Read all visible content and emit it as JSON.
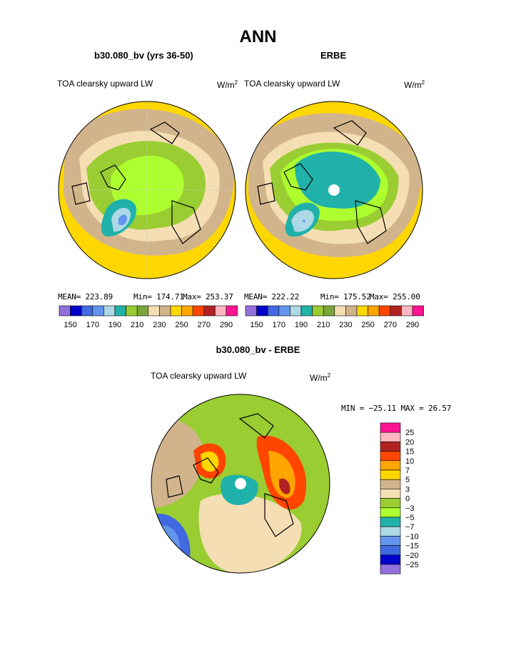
{
  "page_title": "ANN",
  "colors": {
    "abs_scale": [
      "#9370db",
      "#0000cd",
      "#4169e1",
      "#6495ed",
      "#add8e6",
      "#20b2aa",
      "#9acd32",
      "#7ba63a",
      "#f5deb3",
      "#d2b48c",
      "#ffd700",
      "#ffa500",
      "#ff4500",
      "#b22222",
      "#ffb6c1",
      "#ff1493"
    ],
    "diff_scale": [
      "#9370db",
      "#0000cd",
      "#4169e1",
      "#6495ed",
      "#add8e6",
      "#20b2aa",
      "#adff2f",
      "#9acd32",
      "#f5deb3",
      "#d2b48c",
      "#ffd700",
      "#ffa500",
      "#ff4500",
      "#b22222",
      "#ffb6c1",
      "#ff1493"
    ]
  },
  "chart_data": [
    {
      "type": "heatmap",
      "projection": "north-polar-stereographic",
      "title": "b30.080_bv (yrs 36-50)",
      "variable": "TOA clearsky upward LW",
      "units_base": "W/m",
      "units_exp": "2",
      "stats": {
        "mean": "MEAN= 223.89",
        "min": "Min= 174.71",
        "max": "Max= 253.37"
      },
      "colorbar": {
        "orientation": "horizontal",
        "tick_labels": [
          "150",
          "170",
          "190",
          "210",
          "230",
          "250",
          "270",
          "290"
        ]
      }
    },
    {
      "type": "heatmap",
      "projection": "north-polar-stereographic",
      "title": "ERBE",
      "variable": "TOA clearsky upward LW",
      "units_base": "W/m",
      "units_exp": "2",
      "stats": {
        "mean": "MEAN= 222.22",
        "min": "Min= 175.52",
        "max": "Max= 255.00"
      },
      "colorbar": {
        "orientation": "horizontal",
        "tick_labels": [
          "150",
          "170",
          "190",
          "210",
          "230",
          "250",
          "270",
          "290"
        ]
      }
    },
    {
      "type": "heatmap",
      "projection": "north-polar-stereographic",
      "title": "b30.080_bv - ERBE",
      "variable": "TOA clearsky upward LW",
      "units_base": "W/m",
      "units_exp": "2",
      "stats": {
        "minmax": "MIN = −25.11 MAX =   26.57"
      },
      "colorbar": {
        "orientation": "vertical",
        "tick_labels": [
          "25",
          "20",
          "15",
          "10",
          "7",
          "5",
          "3",
          "0",
          "−3",
          "−5",
          "−7",
          "−10",
          "−15",
          "−20",
          "−25"
        ]
      }
    }
  ]
}
